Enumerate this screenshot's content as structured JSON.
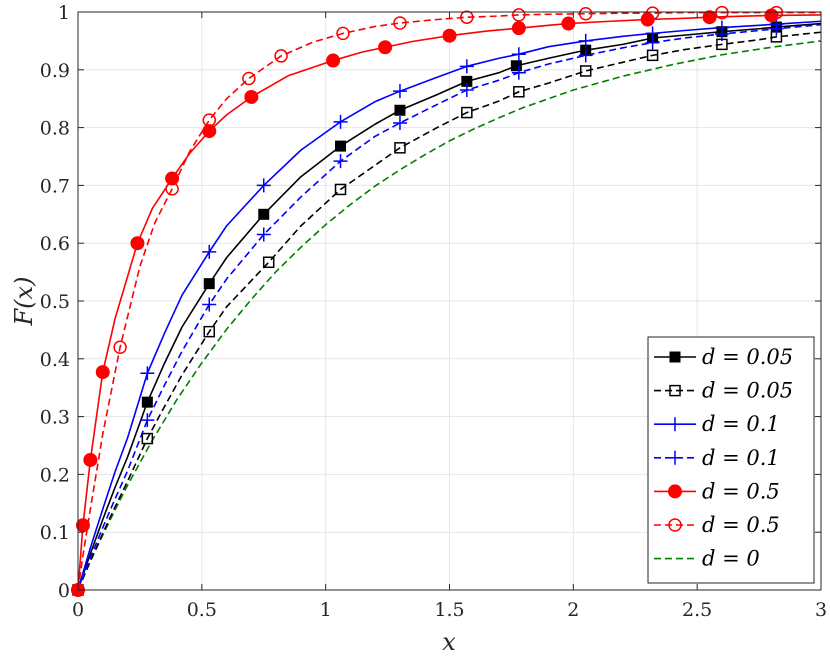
{
  "chart_data": {
    "type": "line",
    "xlabel": "x",
    "ylabel": "F(x)",
    "xlim": [
      0,
      3
    ],
    "ylim": [
      0,
      1
    ],
    "grid": true,
    "legend_position": "bottom-right",
    "x_ticks": [
      "0",
      "0.5",
      "1",
      "1.5",
      "2",
      "2.5",
      "3"
    ],
    "y_ticks": [
      "0",
      "0.1",
      "0.2",
      "0.3",
      "0.4",
      "0.5",
      "0.6",
      "0.7",
      "0.8",
      "0.9",
      "1"
    ],
    "series": [
      {
        "name": "d = 0.05",
        "color": "#000000",
        "line": "solid",
        "marker": "filled-square",
        "x": [
          0,
          0.01,
          0.05,
          0.1,
          0.15,
          0.2,
          0.28,
          0.35,
          0.42,
          0.53,
          0.6,
          0.75,
          0.9,
          1.06,
          1.2,
          1.3,
          1.45,
          1.57,
          1.7,
          1.77,
          1.9,
          2.05,
          2.2,
          2.32,
          2.45,
          2.6,
          2.75,
          2.82,
          3.0
        ],
        "y": [
          0,
          0.013,
          0.063,
          0.122,
          0.178,
          0.23,
          0.325,
          0.393,
          0.455,
          0.53,
          0.575,
          0.65,
          0.715,
          0.768,
          0.806,
          0.83,
          0.857,
          0.88,
          0.895,
          0.907,
          0.92,
          0.934,
          0.944,
          0.955,
          0.96,
          0.966,
          0.971,
          0.974,
          0.98
        ],
        "markers_x": [
          0,
          0.28,
          0.53,
          0.75,
          1.06,
          1.3,
          1.57,
          1.77,
          2.05,
          2.32,
          2.6,
          2.82
        ]
      },
      {
        "name": "d = 0.05",
        "color": "#000000",
        "line": "dashed",
        "marker": "open-square",
        "x": [
          0,
          0.01,
          0.05,
          0.1,
          0.15,
          0.2,
          0.28,
          0.35,
          0.42,
          0.53,
          0.6,
          0.77,
          0.9,
          1.06,
          1.2,
          1.3,
          1.45,
          1.57,
          1.7,
          1.78,
          1.9,
          2.05,
          2.2,
          2.32,
          2.45,
          2.6,
          2.75,
          2.82,
          3.0
        ],
        "y": [
          0,
          0.01,
          0.05,
          0.098,
          0.144,
          0.188,
          0.262,
          0.318,
          0.372,
          0.447,
          0.49,
          0.567,
          0.63,
          0.693,
          0.735,
          0.765,
          0.8,
          0.826,
          0.846,
          0.862,
          0.877,
          0.898,
          0.913,
          0.925,
          0.935,
          0.944,
          0.952,
          0.957,
          0.965
        ],
        "markers_x": [
          0,
          0.28,
          0.53,
          0.77,
          1.06,
          1.3,
          1.57,
          1.78,
          2.05,
          2.32,
          2.6,
          2.82
        ]
      },
      {
        "name": "d = 0.1",
        "color": "#0000ff",
        "line": "solid",
        "marker": "plus",
        "x": [
          0,
          0.01,
          0.05,
          0.1,
          0.15,
          0.2,
          0.28,
          0.35,
          0.42,
          0.53,
          0.6,
          0.75,
          0.9,
          1.06,
          1.2,
          1.3,
          1.45,
          1.57,
          1.7,
          1.78,
          1.9,
          2.05,
          2.2,
          2.32,
          2.45,
          2.6,
          2.75,
          2.82,
          3.0
        ],
        "y": [
          0,
          0.015,
          0.073,
          0.14,
          0.205,
          0.263,
          0.375,
          0.445,
          0.51,
          0.585,
          0.63,
          0.7,
          0.761,
          0.81,
          0.845,
          0.863,
          0.887,
          0.906,
          0.92,
          0.927,
          0.94,
          0.95,
          0.958,
          0.963,
          0.968,
          0.973,
          0.977,
          0.979,
          0.984
        ],
        "markers_x": [
          0,
          0.28,
          0.53,
          0.75,
          1.06,
          1.3,
          1.57,
          1.78,
          2.05,
          2.32,
          2.6,
          2.82
        ]
      },
      {
        "name": "d = 0.1",
        "color": "#0000ff",
        "line": "dashed",
        "marker": "plus",
        "x": [
          0,
          0.01,
          0.05,
          0.1,
          0.15,
          0.2,
          0.28,
          0.35,
          0.42,
          0.53,
          0.6,
          0.75,
          0.9,
          1.06,
          1.2,
          1.3,
          1.45,
          1.57,
          1.7,
          1.78,
          1.9,
          2.05,
          2.2,
          2.32,
          2.45,
          2.6,
          2.75,
          2.82,
          3.0
        ],
        "y": [
          0,
          0.011,
          0.056,
          0.108,
          0.158,
          0.206,
          0.294,
          0.355,
          0.413,
          0.494,
          0.538,
          0.615,
          0.68,
          0.742,
          0.785,
          0.808,
          0.84,
          0.865,
          0.882,
          0.895,
          0.91,
          0.925,
          0.938,
          0.947,
          0.955,
          0.962,
          0.968,
          0.971,
          0.978
        ],
        "markers_x": [
          0,
          0.28,
          0.53,
          0.75,
          1.06,
          1.3,
          1.57,
          1.78,
          2.05,
          2.32,
          2.6,
          2.82
        ]
      },
      {
        "name": "d = 0.5",
        "color": "#ff0000",
        "line": "solid",
        "marker": "filled-circle",
        "x": [
          0,
          0.02,
          0.05,
          0.1,
          0.15,
          0.24,
          0.3,
          0.38,
          0.45,
          0.53,
          0.6,
          0.7,
          0.85,
          1.03,
          1.15,
          1.24,
          1.35,
          1.5,
          1.65,
          1.78,
          1.9,
          1.98,
          2.15,
          2.3,
          2.45,
          2.55,
          2.7,
          2.8,
          3.0
        ],
        "y": [
          0,
          0.112,
          0.225,
          0.377,
          0.47,
          0.6,
          0.66,
          0.712,
          0.755,
          0.794,
          0.822,
          0.853,
          0.89,
          0.916,
          0.931,
          0.939,
          0.949,
          0.959,
          0.967,
          0.972,
          0.977,
          0.98,
          0.984,
          0.987,
          0.989,
          0.991,
          0.993,
          0.994,
          0.995
        ],
        "markers_x": [
          0,
          0.02,
          0.05,
          0.1,
          0.24,
          0.38,
          0.53,
          0.7,
          1.03,
          1.24,
          1.5,
          1.78,
          1.98,
          2.3,
          2.55,
          2.8
        ]
      },
      {
        "name": "d = 0.5",
        "color": "#ff0000",
        "line": "dashed",
        "marker": "open-circle",
        "x": [
          0,
          0.02,
          0.05,
          0.1,
          0.17,
          0.25,
          0.31,
          0.38,
          0.45,
          0.53,
          0.6,
          0.69,
          0.82,
          0.95,
          1.07,
          1.2,
          1.3,
          1.45,
          1.57,
          1.7,
          1.78,
          1.9,
          2.05,
          2.2,
          2.32,
          2.45,
          2.6,
          2.82,
          3.0
        ],
        "y": [
          0,
          0.06,
          0.14,
          0.27,
          0.42,
          0.56,
          0.635,
          0.694,
          0.758,
          0.813,
          0.85,
          0.885,
          0.924,
          0.948,
          0.963,
          0.975,
          0.981,
          0.987,
          0.991,
          0.993,
          0.995,
          0.996,
          0.997,
          0.998,
          0.998,
          0.999,
          0.999,
          0.999,
          0.999
        ],
        "markers_x": [
          0,
          0.17,
          0.38,
          0.53,
          0.69,
          0.82,
          1.07,
          1.3,
          1.57,
          1.78,
          2.05,
          2.32,
          2.6,
          2.82
        ]
      },
      {
        "name": "d = 0",
        "color": "#008000",
        "line": "dashed",
        "marker": "none",
        "x": [
          0,
          0.05,
          0.1,
          0.15,
          0.2,
          0.3,
          0.4,
          0.5,
          0.6,
          0.7,
          0.8,
          0.9,
          1.0,
          1.1,
          1.2,
          1.3,
          1.4,
          1.5,
          1.6,
          1.7,
          1.8,
          1.9,
          2.0,
          2.2,
          2.4,
          2.6,
          2.8,
          3.0
        ],
        "y": [
          0,
          0.05,
          0.095,
          0.139,
          0.181,
          0.259,
          0.33,
          0.393,
          0.451,
          0.503,
          0.551,
          0.593,
          0.632,
          0.667,
          0.699,
          0.727,
          0.753,
          0.777,
          0.798,
          0.817,
          0.835,
          0.85,
          0.865,
          0.889,
          0.909,
          0.926,
          0.939,
          0.95
        ]
      }
    ]
  }
}
